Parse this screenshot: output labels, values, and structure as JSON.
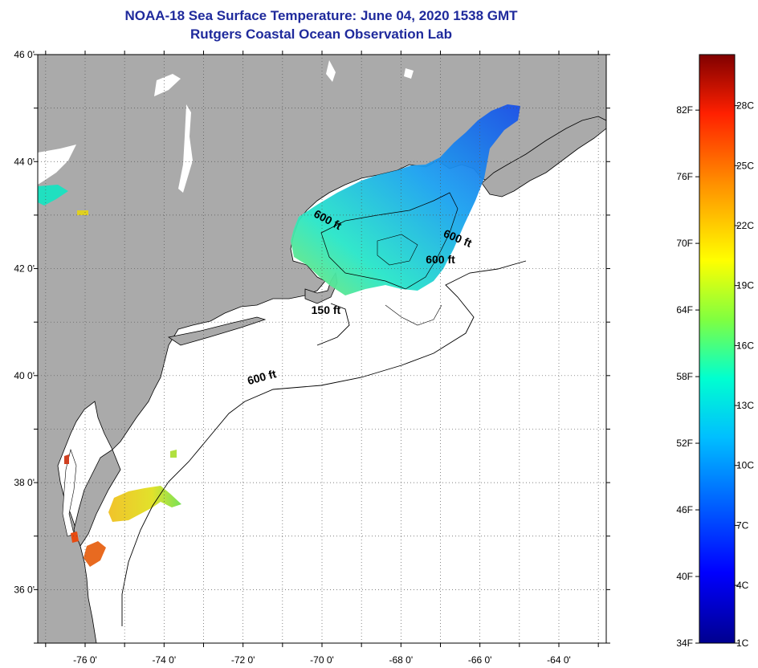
{
  "title": {
    "line1": "NOAA-18 Sea Surface Temperature:  June 04, 2020 1538 GMT",
    "line2": "Rutgers Coastal Ocean Observation Lab"
  },
  "map": {
    "lon_range": [
      -77.2,
      -62.8
    ],
    "lat_range": [
      35.0,
      46.0
    ],
    "lat_ticks": [
      {
        "value": 46,
        "label": "46 0'"
      },
      {
        "value": 44,
        "label": "44 0'"
      },
      {
        "value": 42,
        "label": "42 0'"
      },
      {
        "value": 40,
        "label": "40 0'"
      },
      {
        "value": 38,
        "label": "38 0'"
      },
      {
        "value": 36,
        "label": "36 0'"
      }
    ],
    "lon_ticks": [
      {
        "value": -76,
        "label": "-76 0'"
      },
      {
        "value": -74,
        "label": "-74 0'"
      },
      {
        "value": -72,
        "label": "-72 0'"
      },
      {
        "value": -70,
        "label": "-70 0'"
      },
      {
        "value": -68,
        "label": "-68 0'"
      },
      {
        "value": -66,
        "label": "-66 0'"
      },
      {
        "value": -64,
        "label": "-64 0'"
      }
    ],
    "contour_labels": [
      {
        "text": "600 ft",
        "lon": -69.9,
        "lat": 42.85,
        "rotate": 28
      },
      {
        "text": "600 ft",
        "lon": -66.6,
        "lat": 42.5,
        "rotate": 22
      },
      {
        "text": "600 ft",
        "lon": -67.0,
        "lat": 42.1,
        "rotate": 0
      },
      {
        "text": "150 ft",
        "lon": -69.9,
        "lat": 41.15,
        "rotate": 0
      },
      {
        "text": "600 ft",
        "lon": -71.5,
        "lat": 39.9,
        "rotate": -15
      }
    ],
    "colors": {
      "land": "#aaaaaa",
      "ocean": "#ffffff",
      "grid": "#555555"
    }
  },
  "colorbar": {
    "f_labels": [
      "82F",
      "76F",
      "70F",
      "64F",
      "58F",
      "52F",
      "46F",
      "40F",
      "34F"
    ],
    "c_labels": [
      "28C",
      "25C",
      "22C",
      "19C",
      "16C",
      "13C",
      "10C",
      "7C",
      "4C",
      "1C"
    ],
    "min_f": 34,
    "max_f": 87
  }
}
